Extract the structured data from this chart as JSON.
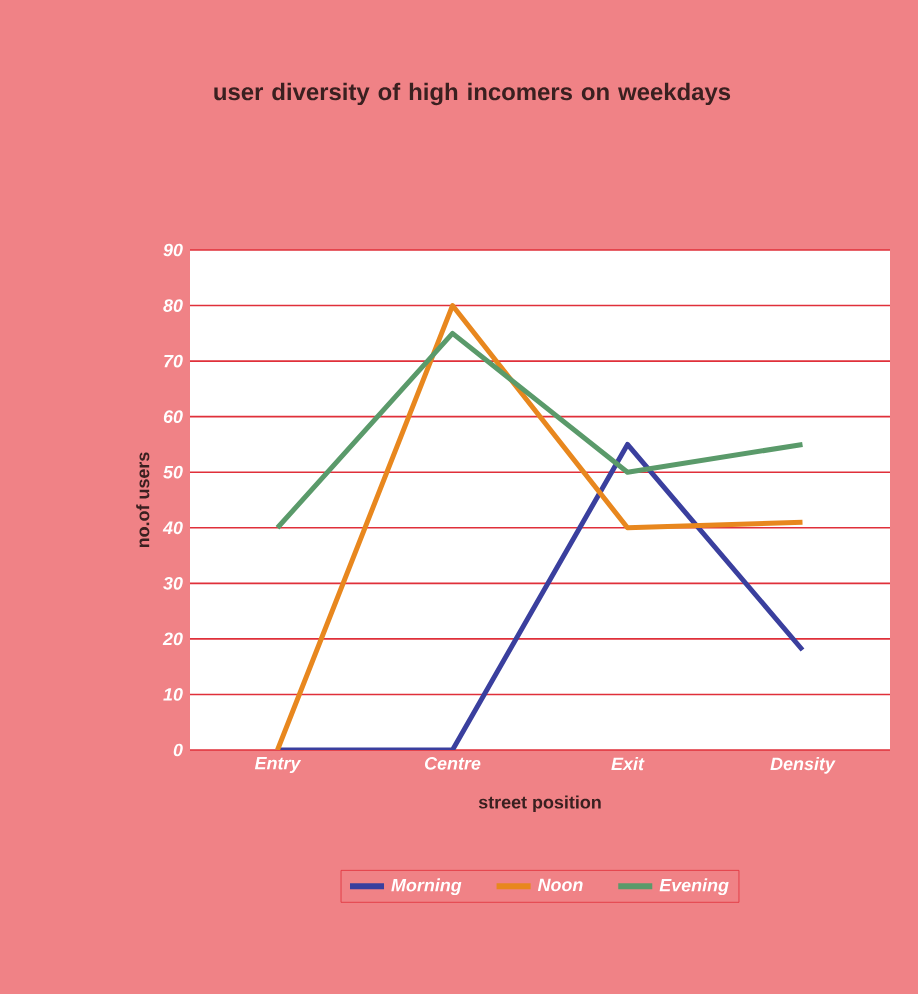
{
  "chart_data": {
    "type": "line",
    "title": "user diversity of high incomers on weekdays",
    "xlabel": "street position",
    "ylabel": "no.of users",
    "categories": [
      "Entry",
      "Centre",
      "Exit",
      "Density"
    ],
    "series": [
      {
        "name": "Morning",
        "color": "#3a3f9e",
        "values": [
          0,
          0,
          55,
          18
        ]
      },
      {
        "name": "Noon",
        "color": "#e8871e",
        "values": [
          0,
          80,
          40,
          41
        ]
      },
      {
        "name": "Evening",
        "color": "#5a9a6a",
        "values": [
          40,
          75,
          50,
          55
        ]
      }
    ],
    "ylim": [
      0,
      90
    ],
    "yticks": [
      0,
      10,
      20,
      30,
      40,
      50,
      60,
      70,
      80,
      90
    ],
    "grid": "y",
    "legend": "bottom",
    "marker": "none",
    "line_style": "solid"
  }
}
